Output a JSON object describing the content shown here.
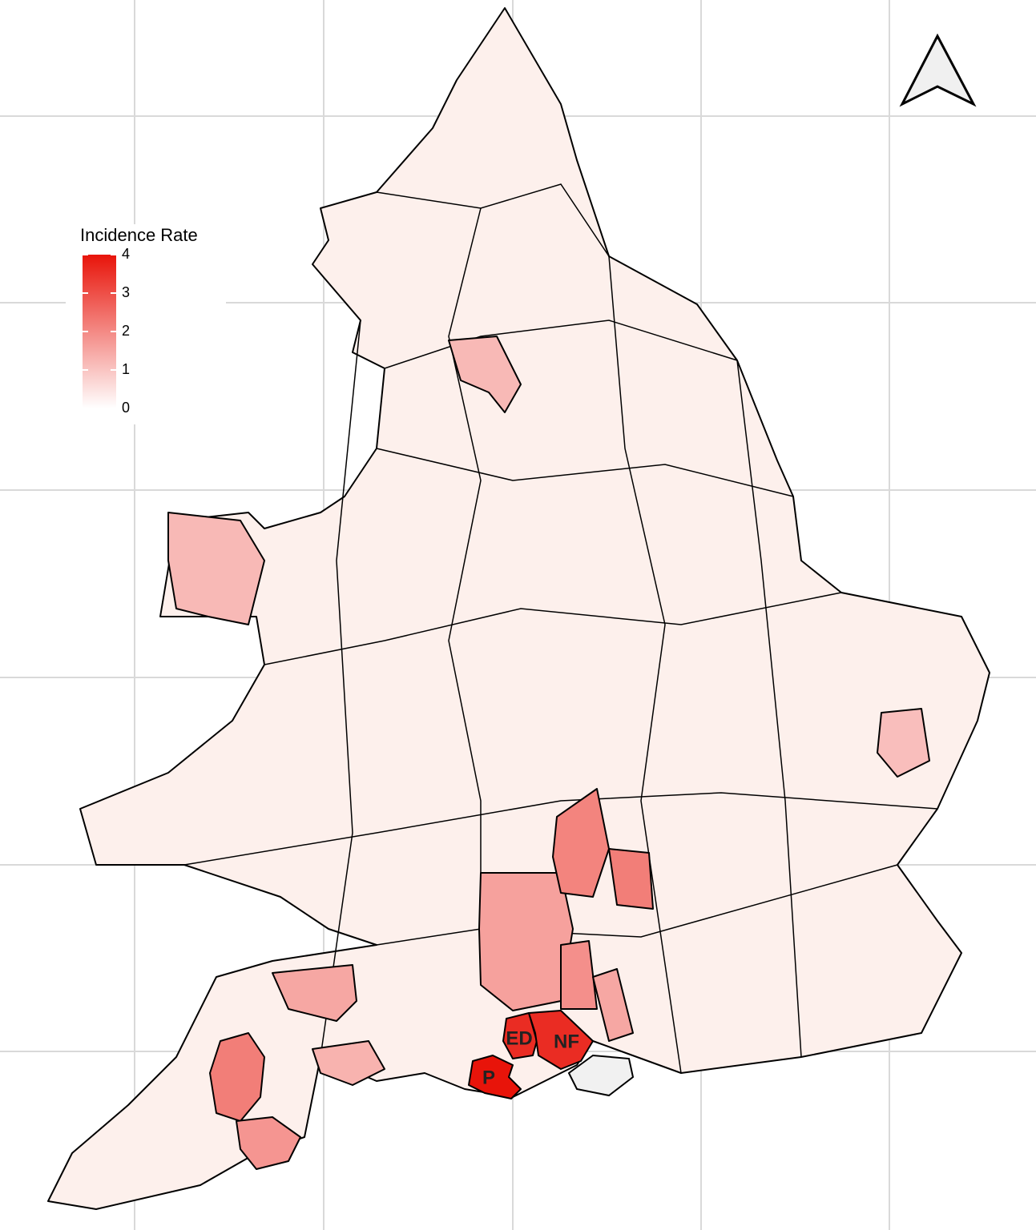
{
  "legend": {
    "title": "Incidence Rate",
    "lim": [
      0,
      4
    ],
    "ticks": [
      0,
      1,
      2,
      3,
      4
    ],
    "color_low": "#ffffff",
    "color_high": "#e8140a"
  },
  "areas": [
    {
      "label": "P",
      "value": 4
    },
    {
      "label": "ED",
      "value": 3.6
    },
    {
      "label": "NF",
      "value": 3.6
    },
    {
      "value": 2.2
    },
    {
      "value": 1.8
    },
    {
      "value": 1.6
    },
    {
      "value": 2.1
    },
    {
      "value": 2.2
    },
    {
      "value": 1.9
    },
    {
      "value": 1.5
    },
    {
      "value": 1.5
    },
    {
      "value": 1.3
    },
    {
      "value": 1.2
    },
    {
      "value": 1.2
    },
    {
      "value": 1.1
    }
  ]
}
